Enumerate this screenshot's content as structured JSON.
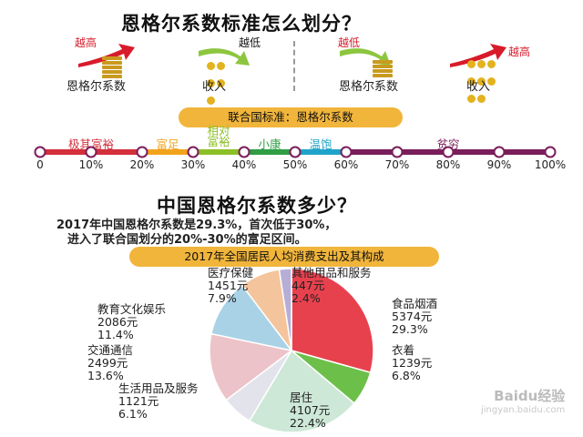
{
  "header": {
    "title": "恩格尔系数标准怎么划分？"
  },
  "left_diagram": {
    "coef_arrow": "越高",
    "coef_label": "恩格尔系数",
    "income_arrow": "越低",
    "income_label": "收入"
  },
  "right_diagram": {
    "coef_arrow": "越低",
    "coef_label": "恩格尔系数",
    "income_arrow": "越高",
    "income_label": "收入"
  },
  "un_scale": {
    "banner": "联合国标准：恩格尔系数",
    "categories": [
      {
        "label": "极其富裕",
        "from": 0,
        "to": 20,
        "color": "#d32f3c"
      },
      {
        "label": "富足",
        "from": 20,
        "to": 30,
        "color": "#f2a31c"
      },
      {
        "label": "相对富裕",
        "from": 30,
        "to": 40,
        "color": "#8cbf26"
      },
      {
        "label": "小康",
        "from": 40,
        "to": 50,
        "color": "#2f9e44"
      },
      {
        "label": "温饱",
        "from": 50,
        "to": 60,
        "color": "#1fa3c8"
      },
      {
        "label": "贫穷",
        "from": 60,
        "to": 100,
        "color": "#7a1e5a"
      }
    ],
    "ticks": [
      "0",
      "10%",
      "20%",
      "30%",
      "40%",
      "50%",
      "60%",
      "70%",
      "80%",
      "90%",
      "100%"
    ]
  },
  "section2": {
    "title": "中国恩格尔系数多少？",
    "line1": "2017年中国恩格尔系数是29.3%，首次低于30%，",
    "line2": "进入了联合国划分的20%-30%的富足区间。"
  },
  "chart_data": {
    "type": "pie",
    "title": "2017年全国居民人均消费支出及其构成",
    "slices": [
      {
        "name": "食品烟酒",
        "amount": "5374元",
        "value": 29.3,
        "pct": "29.3%",
        "color": "#e8414e"
      },
      {
        "name": "衣着",
        "amount": "1239元",
        "value": 6.8,
        "pct": "6.8%",
        "color": "#6cc04a"
      },
      {
        "name": "居住",
        "amount": "4107元",
        "value": 22.4,
        "pct": "22.4%",
        "color": "#cde8d6"
      },
      {
        "name": "生活用品及服务",
        "amount": "1121元",
        "value": 6.1,
        "pct": "6.1%",
        "color": "#e3e3ec"
      },
      {
        "name": "交通通信",
        "amount": "2499元",
        "value": 13.6,
        "pct": "13.6%",
        "color": "#ecc3c8"
      },
      {
        "name": "教育文化娱乐",
        "amount": "2086元",
        "value": 11.4,
        "pct": "11.4%",
        "color": "#a9d2e6"
      },
      {
        "name": "医疗保健",
        "amount": "1451元",
        "value": 7.9,
        "pct": "7.9%",
        "color": "#f4c49c"
      },
      {
        "name": "其他用品和服务",
        "amount": "447元",
        "value": 2.4,
        "pct": "2.4%",
        "color": "#b6aed6"
      }
    ]
  },
  "watermark": {
    "site": "jingyan.baidu.com",
    "brand": "Baidu经验"
  },
  "colors": {
    "banner": "#f1b53b",
    "arrow_red": "#d81b2a",
    "arrow_green": "#8cc63f"
  }
}
